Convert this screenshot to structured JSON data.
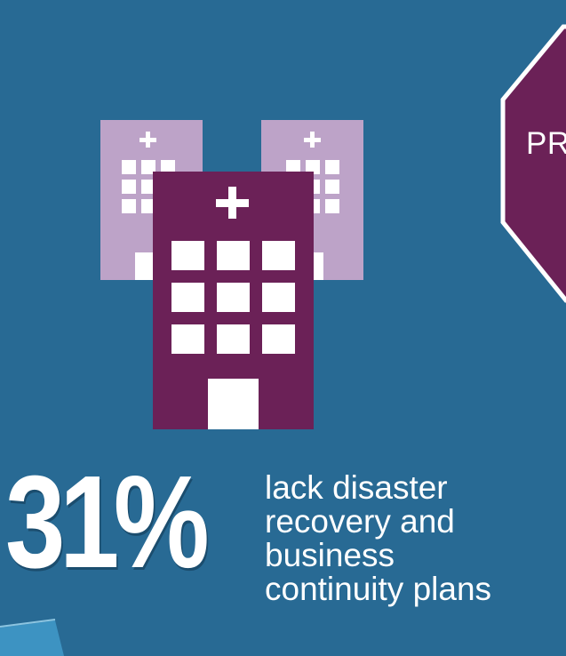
{
  "stop_sign": {
    "label": "PR",
    "fill": "#6b2157",
    "border": "#ffffff"
  },
  "hospitals": {
    "icon": "hospital-icon",
    "back_color": "#bda3c8",
    "front_color": "#6b2157",
    "window_color": "#ffffff"
  },
  "stat": {
    "value": "31%",
    "description_lines": [
      "lack disaster",
      "recovery and",
      "business",
      "continuity plans"
    ]
  },
  "colors": {
    "background": "#286a94",
    "accent_wedge": "#3d93c2"
  }
}
